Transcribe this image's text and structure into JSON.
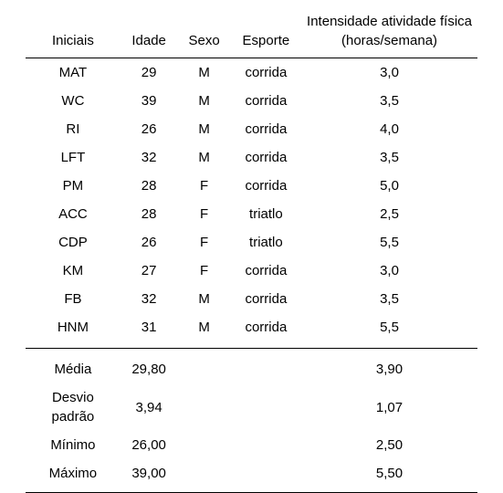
{
  "table": {
    "headers": {
      "col1": "Iniciais",
      "col2": "Idade",
      "col3": "Sexo",
      "col4": "Esporte",
      "col5_line1": "Intensidade atividade física",
      "col5_line2": "(horas/semana)"
    },
    "rows": [
      {
        "iniciais": "MAT",
        "idade": "29",
        "sexo": "M",
        "esporte": "corrida",
        "intensidade": "3,0"
      },
      {
        "iniciais": "WC",
        "idade": "39",
        "sexo": "M",
        "esporte": "corrida",
        "intensidade": "3,5"
      },
      {
        "iniciais": "RI",
        "idade": "26",
        "sexo": "M",
        "esporte": "corrida",
        "intensidade": "4,0"
      },
      {
        "iniciais": "LFT",
        "idade": "32",
        "sexo": "M",
        "esporte": "corrida",
        "intensidade": "3,5"
      },
      {
        "iniciais": "PM",
        "idade": "28",
        "sexo": "F",
        "esporte": "corrida",
        "intensidade": "5,0"
      },
      {
        "iniciais": "ACC",
        "idade": "28",
        "sexo": "F",
        "esporte": "triatlo",
        "intensidade": "2,5"
      },
      {
        "iniciais": "CDP",
        "idade": "26",
        "sexo": "F",
        "esporte": "triatlo",
        "intensidade": "5,5"
      },
      {
        "iniciais": "KM",
        "idade": "27",
        "sexo": "F",
        "esporte": "corrida",
        "intensidade": "3,0"
      },
      {
        "iniciais": "FB",
        "idade": "32",
        "sexo": "M",
        "esporte": "corrida",
        "intensidade": "3,5"
      },
      {
        "iniciais": "HNM",
        "idade": "31",
        "sexo": "M",
        "esporte": "corrida",
        "intensidade": "5,5"
      }
    ],
    "summary": [
      {
        "label": "Média",
        "idade": "29,80",
        "intensidade": "3,90"
      },
      {
        "label": "Desvio padrão",
        "idade": "3,94",
        "intensidade": "1,07"
      },
      {
        "label": "Mínimo",
        "idade": "26,00",
        "intensidade": "2,50"
      },
      {
        "label": "Máximo",
        "idade": "39,00",
        "intensidade": "5,50"
      }
    ]
  },
  "styling": {
    "font_family": "Arial",
    "font_size_pt": 11,
    "text_color": "#000000",
    "background_color": "#ffffff",
    "border_color": "#000000"
  }
}
